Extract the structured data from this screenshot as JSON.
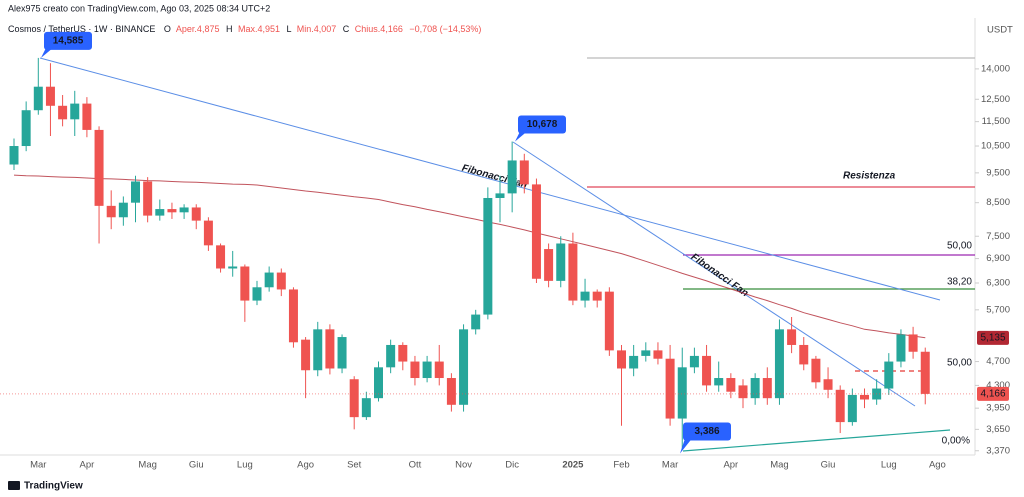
{
  "header": {
    "credit": "Alex975 creato con TradingView.com, Ago 03, 2025 08:34 UTC+2",
    "symbol": "Cosmos / TetherUS · 1W · BINANCE",
    "ohlc": [
      {
        "key": "O",
        "text": "Aper.4,875"
      },
      {
        "key": "H",
        "text": "Max.4,951"
      },
      {
        "key": "L",
        "text": "Min.4,007"
      },
      {
        "key": "C",
        "text": "Chius.4,166"
      }
    ],
    "change": "−0,708 (−14,53%)"
  },
  "chart_data": {
    "type": "candlestick",
    "y_axis_label": "USDT",
    "categories": [
      null,
      null,
      "Mar",
      null,
      null,
      null,
      "Apr",
      null,
      null,
      null,
      null,
      "Mag",
      null,
      null,
      null,
      "Giu",
      null,
      null,
      null,
      "Lug",
      null,
      null,
      null,
      null,
      "Ago",
      null,
      null,
      null,
      "Set",
      null,
      null,
      null,
      null,
      "Ott",
      null,
      null,
      null,
      "Nov",
      null,
      null,
      null,
      "Dic",
      null,
      null,
      null,
      null,
      "2025",
      null,
      null,
      null,
      "Feb",
      null,
      null,
      null,
      "Mar",
      null,
      null,
      null,
      null,
      "Apr",
      null,
      null,
      null,
      "Mag",
      null,
      null,
      null,
      "Giu",
      null,
      null,
      null,
      null,
      "Lug",
      null,
      null,
      null,
      "Ago"
    ],
    "open": [
      9800,
      10500,
      12000,
      13100,
      12200,
      11600,
      12300,
      11150,
      8400,
      8050,
      8500,
      9200,
      8100,
      8300,
      8200,
      8350,
      7950,
      7250,
      6650,
      6700,
      5900,
      6200,
      6550,
      6150,
      5100,
      4550,
      5300,
      4580,
      4400,
      3820,
      4100,
      4600,
      5000,
      4700,
      4420,
      4700,
      4420,
      4000,
      5300,
      5600,
      8650,
      8800,
      9950,
      9100,
      7150,
      6350,
      7300,
      5900,
      6100,
      6100,
      4900,
      4580,
      4800,
      4900,
      4750,
      3800,
      4600,
      4800,
      4300,
      4420,
      4300,
      4100,
      4420,
      4100,
      5300,
      5000,
      4750,
      4400,
      4230,
      3750,
      4150,
      4080,
      4250,
      4700,
      5200,
      4875,
      null
    ],
    "high": [
      10800,
      12400,
      14585,
      14300,
      12700,
      12900,
      12600,
      11300,
      8900,
      8700,
      9400,
      9350,
      8600,
      8500,
      8450,
      8450,
      8050,
      7300,
      7100,
      6750,
      6350,
      6700,
      6650,
      6200,
      5150,
      5450,
      5400,
      5200,
      4450,
      4200,
      4700,
      5100,
      5050,
      4800,
      4800,
      5000,
      4500,
      5400,
      5700,
      9000,
      9400,
      10678,
      10200,
      9300,
      7300,
      7500,
      7600,
      6400,
      6150,
      6200,
      5000,
      5000,
      5050,
      5050,
      5000,
      4950,
      4950,
      5000,
      4700,
      4500,
      4400,
      4500,
      4600,
      5500,
      5550,
      5150,
      4800,
      4600,
      4300,
      4250,
      4250,
      4400,
      4850,
      5300,
      5350,
      4951,
      null
    ],
    "low": [
      9600,
      10300,
      11800,
      10900,
      11300,
      10900,
      10850,
      7300,
      7700,
      7800,
      7900,
      7900,
      7950,
      8000,
      8000,
      7700,
      7100,
      6550,
      6450,
      5450,
      5800,
      6100,
      6000,
      4950,
      4100,
      4450,
      4480,
      4500,
      3650,
      3780,
      4050,
      4500,
      4550,
      4300,
      4350,
      4300,
      3900,
      3900,
      5200,
      5500,
      7900,
      8200,
      8800,
      6300,
      6200,
      6200,
      5800,
      5750,
      5750,
      4800,
      3700,
      4450,
      4700,
      4650,
      3700,
      3386,
      4500,
      4200,
      4200,
      4100,
      3950,
      4000,
      4000,
      4000,
      4850,
      4550,
      4250,
      4100,
      3600,
      3700,
      3950,
      4000,
      4150,
      4600,
      4750,
      4007,
      null
    ],
    "close": [
      10500,
      12000,
      13100,
      12200,
      11600,
      12300,
      11150,
      8400,
      8050,
      8500,
      9200,
      8100,
      8300,
      8200,
      8350,
      7950,
      7250,
      6650,
      6700,
      5900,
      6200,
      6550,
      6150,
      5050,
      4550,
      5300,
      4580,
      5150,
      3820,
      4100,
      4600,
      5000,
      4700,
      4420,
      4700,
      4420,
      4000,
      5300,
      5600,
      8650,
      8800,
      9950,
      9100,
      6400,
      6350,
      7300,
      5900,
      6100,
      5900,
      4900,
      4580,
      4800,
      4900,
      4750,
      3800,
      4600,
      4800,
      4300,
      4420,
      4200,
      4100,
      4420,
      4100,
      5300,
      5000,
      4650,
      4350,
      4230,
      3750,
      4150,
      4080,
      4250,
      4700,
      5200,
      4875,
      4166,
      null
    ],
    "up_color": "#26a69a",
    "down_color": "#ef5350",
    "log": true,
    "ylim": [
      3317,
      16800
    ],
    "yticks": [
      {
        "value": 14000,
        "label": "14,000"
      },
      {
        "value": 12500,
        "label": "12,500"
      },
      {
        "value": 11500,
        "label": "11,500"
      },
      {
        "value": 10500,
        "label": "10,500"
      },
      {
        "value": 9500,
        "label": "9,500"
      },
      {
        "value": 8500,
        "label": "8,500"
      },
      {
        "value": 7500,
        "label": "7,500"
      },
      {
        "value": 6900,
        "label": "6,900"
      },
      {
        "value": 6300,
        "label": "6,300"
      },
      {
        "value": 5700,
        "label": "5,700"
      },
      {
        "value": 4700,
        "label": "4,700"
      },
      {
        "value": 4300,
        "label": "4,300"
      },
      {
        "value": 3950,
        "label": "3,950"
      },
      {
        "value": 3650,
        "label": "3,650"
      },
      {
        "value": 3370,
        "label": "3,370"
      }
    ],
    "moving_average": {
      "color": "#b22833",
      "values": [
        9420,
        9400,
        9390,
        9370,
        9350,
        9340,
        9320,
        9300,
        9290,
        9270,
        9250,
        9230,
        9220,
        9200,
        9180,
        9170,
        9150,
        9130,
        9110,
        9100,
        9080,
        9030,
        8980,
        8930,
        8880,
        8840,
        8790,
        8740,
        8690,
        8650,
        8600,
        8520,
        8440,
        8370,
        8290,
        8220,
        8140,
        8060,
        7990,
        7910,
        7840,
        7760,
        7680,
        7590,
        7510,
        7430,
        7350,
        7270,
        7190,
        7110,
        7030,
        6930,
        6830,
        6730,
        6630,
        6530,
        6440,
        6350,
        6250,
        6160,
        6070,
        5980,
        5900,
        5810,
        5730,
        5640,
        5570,
        5500,
        5430,
        5370,
        5300,
        5270,
        5230,
        5200,
        5170,
        5135,
        null
      ]
    },
    "price_labels": [
      {
        "value": 5135,
        "label": "5,135",
        "color": "#b22833"
      },
      {
        "value": 4166,
        "label": "4,166",
        "color": "#ef5350"
      }
    ],
    "callouts": [
      {
        "value": 14585,
        "label": "14,585"
      },
      {
        "value": 10678,
        "label": "10,678"
      },
      {
        "value": 3386,
        "label": "3,386"
      }
    ],
    "annotations": [
      "Resistenza",
      "Fibonacci Fan",
      "Fibonacci Fan",
      "50,00",
      "38,20",
      "50,00",
      "0,00%"
    ]
  },
  "footer": {
    "brand": "TradingView"
  }
}
